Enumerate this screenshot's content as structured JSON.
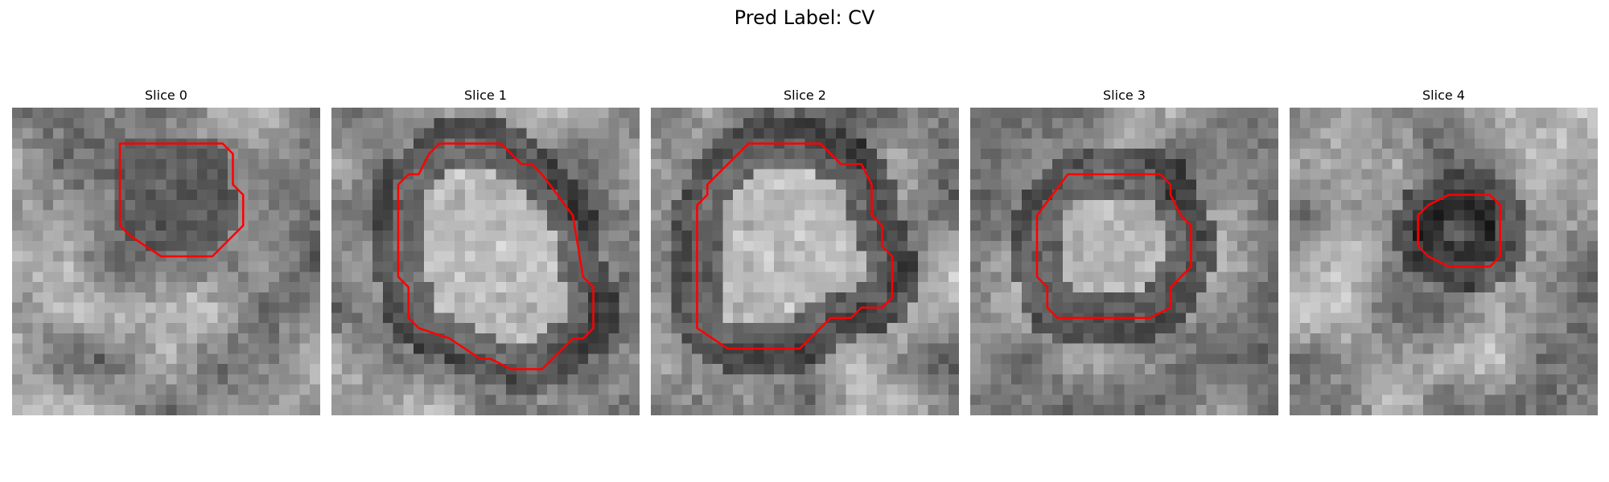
{
  "figure": {
    "title": "Pred Label: CV",
    "contour_color": "#ff0000"
  },
  "panels": [
    {
      "title": "Slice 0",
      "seed": 11,
      "contour": [
        [
          10.5,
          3.5
        ],
        [
          20.5,
          3.5
        ],
        [
          21.5,
          4.5
        ],
        [
          21.5,
          7.5
        ],
        [
          22.5,
          8.5
        ],
        [
          22.5,
          11.5
        ],
        [
          19.5,
          14.5
        ],
        [
          14.5,
          14.5
        ],
        [
          11.5,
          12.5
        ],
        [
          10.5,
          11.5
        ]
      ]
    },
    {
      "title": "Slice 1",
      "seed": 23,
      "contour": [
        [
          10.5,
          3.5
        ],
        [
          16.5,
          3.5
        ],
        [
          17.5,
          4.5
        ],
        [
          18.5,
          5.5
        ],
        [
          19.5,
          5.5
        ],
        [
          20.5,
          6.5
        ],
        [
          23.5,
          10.5
        ],
        [
          24.5,
          16.5
        ],
        [
          25.5,
          17.5
        ],
        [
          25.5,
          21.5
        ],
        [
          24.5,
          22.5
        ],
        [
          23.5,
          22.5
        ],
        [
          20.5,
          25.5
        ],
        [
          17.5,
          25.5
        ],
        [
          15.5,
          24.5
        ],
        [
          14.5,
          24.5
        ],
        [
          11.5,
          22.5
        ],
        [
          8.5,
          21.5
        ],
        [
          7.5,
          20.5
        ],
        [
          7.5,
          17.5
        ],
        [
          6.5,
          16.5
        ],
        [
          6.5,
          7.5
        ],
        [
          7.5,
          6.5
        ],
        [
          8.5,
          6.5
        ],
        [
          9.5,
          4.5
        ]
      ]
    },
    {
      "title": "Slice 2",
      "seed": 37,
      "contour": [
        [
          9.5,
          3.5
        ],
        [
          16.5,
          3.5
        ],
        [
          18.5,
          5.5
        ],
        [
          20.5,
          5.5
        ],
        [
          21.5,
          7.5
        ],
        [
          21.5,
          10.5
        ],
        [
          22.5,
          11.5
        ],
        [
          22.5,
          13.5
        ],
        [
          23.5,
          14.5
        ],
        [
          23.5,
          18.5
        ],
        [
          22.5,
          19.5
        ],
        [
          20.5,
          19.5
        ],
        [
          19.5,
          20.5
        ],
        [
          17.5,
          20.5
        ],
        [
          14.5,
          23.5
        ],
        [
          7.5,
          23.5
        ],
        [
          4.5,
          21.5
        ],
        [
          4.5,
          9.5
        ],
        [
          5.5,
          8.5
        ],
        [
          5.5,
          7.5
        ]
      ]
    },
    {
      "title": "Slice 3",
      "seed": 53,
      "contour": [
        [
          9.5,
          6.5
        ],
        [
          18.5,
          6.5
        ],
        [
          19.5,
          7.5
        ],
        [
          19.5,
          8.5
        ],
        [
          20.5,
          10.5
        ],
        [
          21.5,
          11.5
        ],
        [
          21.5,
          15.5
        ],
        [
          20.5,
          16.5
        ],
        [
          19.5,
          17.5
        ],
        [
          19.5,
          19.5
        ],
        [
          17.5,
          20.5
        ],
        [
          8.5,
          20.5
        ],
        [
          7.5,
          19.5
        ],
        [
          7.5,
          17.5
        ],
        [
          6.5,
          16.5
        ],
        [
          6.5,
          10.5
        ]
      ]
    },
    {
      "title": "Slice 4",
      "seed": 71,
      "contour": [
        [
          15.5,
          8.5
        ],
        [
          19.5,
          8.5
        ],
        [
          20.5,
          9.5
        ],
        [
          20.5,
          14.5
        ],
        [
          19.5,
          15.5
        ],
        [
          15.5,
          15.5
        ],
        [
          13.5,
          14.5
        ],
        [
          12.5,
          13.5
        ],
        [
          12.5,
          10.5
        ],
        [
          13.5,
          9.5
        ]
      ]
    }
  ]
}
